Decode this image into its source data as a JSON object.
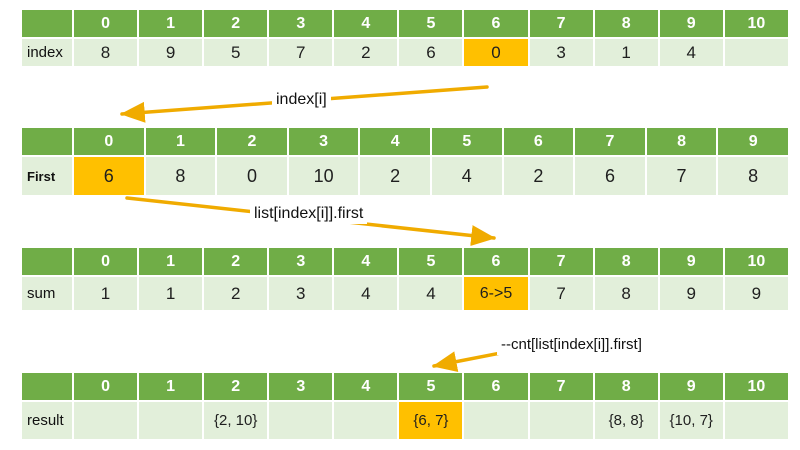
{
  "colors": {
    "header_green": "#70ad47",
    "row_light": "#e2efda",
    "highlight_orange": "#ffc000",
    "arrow_orange": "#f0ab00"
  },
  "tables": [
    {
      "name": "index-array",
      "label": "index",
      "columns": [
        "0",
        "1",
        "2",
        "3",
        "4",
        "5",
        "6",
        "7",
        "8",
        "9",
        "10"
      ],
      "values": [
        "8",
        "9",
        "5",
        "7",
        "2",
        "6",
        "0",
        "3",
        "1",
        "4",
        ""
      ],
      "highlight_index": 6
    },
    {
      "name": "first-array",
      "label": "First",
      "columns": [
        "0",
        "1",
        "2",
        "3",
        "4",
        "5",
        "6",
        "7",
        "8",
        "9"
      ],
      "values": [
        "6",
        "8",
        "0",
        "10",
        "2",
        "4",
        "2",
        "6",
        "7",
        "8"
      ],
      "highlight_index": 0
    },
    {
      "name": "sum-array",
      "label": "sum",
      "columns": [
        "0",
        "1",
        "2",
        "3",
        "4",
        "5",
        "6",
        "7",
        "8",
        "9",
        "10"
      ],
      "values": [
        "1",
        "1",
        "2",
        "3",
        "4",
        "4",
        "6->5",
        "7",
        "8",
        "9",
        "9"
      ],
      "highlight_index": 6
    },
    {
      "name": "result-array",
      "label": "result",
      "columns": [
        "0",
        "1",
        "2",
        "3",
        "4",
        "5",
        "6",
        "7",
        "8",
        "9",
        "10"
      ],
      "values": [
        "",
        "",
        "{2, 10}",
        "",
        "",
        "{6, 7}",
        "",
        "",
        "{8, 8}",
        "{10, 7}",
        ""
      ],
      "highlight_index": 5
    }
  ],
  "annotations": [
    {
      "text": "index[i]"
    },
    {
      "text": "list[index[i]].first"
    },
    {
      "text": "--cnt[list[index[i]].first]"
    }
  ]
}
